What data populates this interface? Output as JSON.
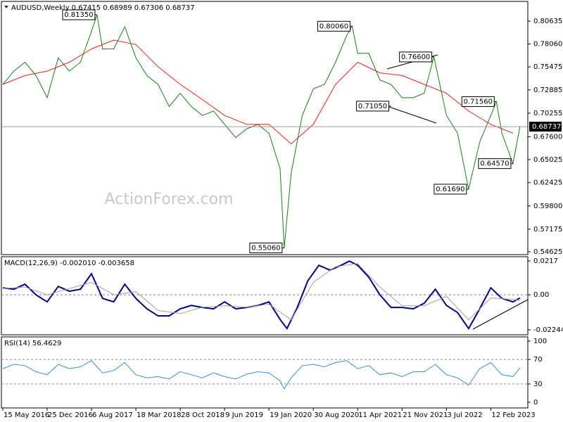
{
  "chart_data": [
    {
      "type": "line",
      "title": "AUDUSD,Weekly  0.67415 0.68989 0.67306 0.68737",
      "watermark": "ActionForex.com",
      "last_price": 0.68737,
      "xlim": [
        -1,
        378.7
      ],
      "ylim": [
        0.5431,
        0.8286
      ],
      "yticks": [
        0.80635,
        {
          "value": 0.7806,
          "label": "0.78060"
        },
        0.75475,
        0.72885,
        0.70255,
        {
          "value": 0.676,
          "label": "0.67600"
        },
        0.65025,
        0.62425,
        {
          "value": 0.598,
          "label": "0.59800"
        },
        0.57175,
        0.54625
      ],
      "series": [
        {
          "color": "#1f7a1f",
          "x": [
            0,
            8,
            16,
            24,
            32,
            40,
            48,
            56,
            64,
            68,
            72,
            80,
            88,
            96,
            104,
            112,
            120,
            128,
            136,
            144,
            152,
            160,
            168,
            176,
            184,
            192,
            200,
            203,
            208,
            216,
            224,
            232,
            240,
            248,
            252,
            256,
            264,
            272,
            280,
            288,
            296,
            304,
            311,
            320,
            328,
            336,
            344,
            352,
            356,
            360,
            368,
            373
          ],
          "values": [
            0.735,
            0.75,
            0.76,
            0.745,
            0.72,
            0.765,
            0.75,
            0.76,
            0.795,
            0.8135,
            0.775,
            0.775,
            0.8,
            0.765,
            0.745,
            0.735,
            0.71,
            0.725,
            0.71,
            0.7,
            0.705,
            0.69,
            0.675,
            0.685,
            0.69,
            0.68,
            0.64,
            0.5506,
            0.635,
            0.7,
            0.73,
            0.735,
            0.76,
            0.79,
            0.8006,
            0.77,
            0.77,
            0.74,
            0.735,
            0.72,
            0.72,
            0.725,
            0.766,
            0.7,
            0.68,
            0.6169,
            0.67,
            0.7,
            0.7156,
            0.68,
            0.6457,
            0.68737
          ]
        },
        {
          "color": "#e02020",
          "x": [
            0,
            16,
            32,
            48,
            64,
            80,
            96,
            112,
            128,
            144,
            160,
            176,
            192,
            208,
            224,
            240,
            256,
            272,
            288,
            304,
            320,
            336,
            352,
            368
          ],
          "values": [
            0.735,
            0.745,
            0.75,
            0.76,
            0.775,
            0.785,
            0.78,
            0.755,
            0.735,
            0.718,
            0.7,
            0.69,
            0.69,
            0.668,
            0.69,
            0.735,
            0.76,
            0.748,
            0.745,
            0.735,
            0.725,
            0.705,
            0.69,
            0.68
          ]
        }
      ],
      "annotations": [
        {
          "x": 68,
          "value": 0.8135,
          "label": "0.81350"
        },
        {
          "x": 252,
          "value": 0.8006,
          "label": "0.80060"
        },
        {
          "x": 311,
          "value": 0.766,
          "label": "0.76600"
        },
        {
          "x": 280,
          "value": 0.7105,
          "label": "0.71050"
        },
        {
          "x": 356,
          "value": 0.7156,
          "label": "0.71560"
        },
        {
          "x": 336,
          "value": 0.6169,
          "label": "0.61690"
        },
        {
          "x": 368,
          "value": 0.6457,
          "label": "0.64570"
        },
        {
          "x": 203,
          "value": 0.5506,
          "label": "0.55060"
        }
      ]
    },
    {
      "type": "line",
      "title": "MACD(12,26,9) -0.002010 -0.003658",
      "xlim": [
        -1,
        378.7
      ],
      "ylim": [
        -0.0256,
        0.0244
      ],
      "yticks": [
        0.0217,
        {
          "value": 0,
          "label": "0.00"
        },
        -0.022445
      ],
      "levels": [
        0
      ],
      "series": [
        {
          "color": "#000080",
          "x": [
            0,
            8,
            16,
            24,
            32,
            40,
            48,
            56,
            64,
            72,
            80,
            88,
            96,
            104,
            112,
            120,
            128,
            136,
            144,
            152,
            160,
            168,
            176,
            184,
            192,
            200,
            205,
            212,
            220,
            228,
            236,
            244,
            250,
            256,
            264,
            272,
            280,
            288,
            296,
            304,
            312,
            320,
            328,
            336,
            344,
            352,
            360,
            368,
            373
          ],
          "values": [
            0.0045,
            0.0036,
            0.0068,
            0,
            -0.0045,
            0.0054,
            0.0023,
            0.0036,
            0.0135,
            -0.0023,
            -0.0045,
            0.0068,
            -0.0023,
            -0.009,
            -0.0135,
            -0.0135,
            -0.009,
            -0.0068,
            -0.0081,
            -0.009,
            -0.0045,
            -0.009,
            -0.0081,
            -0.0068,
            -0.0045,
            -0.0158,
            -0.0216,
            -0.009,
            0.009,
            0.0189,
            0.0158,
            0.0189,
            0.0216,
            0.0189,
            0.0113,
            0,
            -0.0081,
            -0.0081,
            -0.009,
            -0.0054,
            0.0036,
            -0.0068,
            -0.0113,
            -0.0216,
            -0.009,
            0.0045,
            -0.0023,
            -0.0045,
            -0.00201
          ]
        },
        {
          "color": "#a0a0a0",
          "x": [
            0,
            16,
            32,
            48,
            64,
            80,
            96,
            112,
            128,
            144,
            160,
            176,
            192,
            208,
            224,
            240,
            256,
            272,
            288,
            304,
            320,
            336,
            352,
            368,
            373
          ],
          "values": [
            0.004,
            0.005,
            0,
            0.004,
            0.008,
            0,
            0.002,
            -0.01,
            -0.012,
            -0.008,
            -0.007,
            -0.008,
            -0.006,
            -0.016,
            0.008,
            0.018,
            0.02,
            0.005,
            -0.007,
            -0.007,
            -0.001,
            -0.016,
            -0.002,
            -0.003,
            -0.003658
          ]
        }
      ]
    },
    {
      "type": "line",
      "title": "RSI(14) 56.4629",
      "xlim": [
        -1,
        378.7
      ],
      "ylim": [
        -9.2,
        106.9
      ],
      "yticks": [
        100,
        70,
        30,
        0
      ],
      "levels": [
        70,
        30
      ],
      "xticks": [
        {
          "value": 0,
          "label": "15 May 2016"
        },
        {
          "value": 32,
          "label": "25 Dec 2016"
        },
        {
          "value": 64,
          "label": "6 Aug 2017"
        },
        {
          "value": 96,
          "label": "18 Mar 2018"
        },
        {
          "value": 128,
          "label": "28 Oct 2018"
        },
        {
          "value": 160,
          "label": "9 Jun 2019"
        },
        {
          "value": 192,
          "label": "19 Jan 2020"
        },
        {
          "value": 224,
          "label": "30 Aug 2020"
        },
        {
          "value": 256,
          "label": "11 Apr 2021"
        },
        {
          "value": 288,
          "label": "21 Nov 2021"
        },
        {
          "value": 320,
          "label": "3 Jul 2022"
        },
        {
          "value": 352,
          "label": "12 Feb 2023"
        }
      ],
      "series": [
        {
          "color": "#3c8cd0",
          "x": [
            0,
            8,
            16,
            24,
            32,
            40,
            48,
            56,
            64,
            72,
            80,
            88,
            96,
            104,
            112,
            120,
            128,
            136,
            144,
            152,
            160,
            168,
            176,
            184,
            192,
            200,
            203,
            208,
            216,
            224,
            232,
            240,
            248,
            256,
            264,
            272,
            280,
            288,
            296,
            304,
            312,
            320,
            328,
            336,
            344,
            352,
            360,
            368,
            373
          ],
          "values": [
            55,
            62,
            60,
            50,
            45,
            62,
            55,
            58,
            68,
            48,
            52,
            65,
            45,
            40,
            42,
            38,
            50,
            45,
            40,
            48,
            42,
            38,
            46,
            50,
            48,
            35,
            22,
            40,
            60,
            62,
            58,
            65,
            68,
            55,
            60,
            45,
            48,
            42,
            50,
            50,
            62,
            45,
            40,
            28,
            55,
            65,
            45,
            42,
            56.4629
          ]
        }
      ]
    }
  ]
}
